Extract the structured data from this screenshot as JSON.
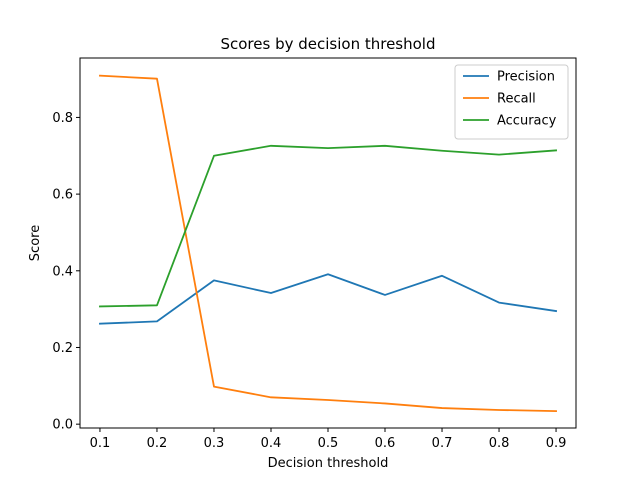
{
  "chart_data": {
    "type": "line",
    "title": "Scores by decision threshold",
    "xlabel": "Decision threshold",
    "ylabel": "Score",
    "x": [
      0.1,
      0.2,
      0.3,
      0.4,
      0.5,
      0.6,
      0.7,
      0.8,
      0.9
    ],
    "xlim": [
      0.065,
      0.935
    ],
    "ylim": [
      -0.01,
      0.955
    ],
    "xticks": [
      0.1,
      0.2,
      0.3,
      0.4,
      0.5,
      0.6,
      0.7,
      0.8,
      0.9
    ],
    "xtick_labels": [
      "0.1",
      "0.2",
      "0.3",
      "0.4",
      "0.5",
      "0.6",
      "0.7",
      "0.8",
      "0.9"
    ],
    "yticks": [
      0.0,
      0.2,
      0.4,
      0.6,
      0.8
    ],
    "ytick_labels": [
      "0.0",
      "0.2",
      "0.4",
      "0.6",
      "0.8"
    ],
    "grid": false,
    "legend_position": "top-right",
    "series": [
      {
        "name": "Precision",
        "color": "#1f77b4",
        "values": [
          0.262,
          0.268,
          0.375,
          0.342,
          0.391,
          0.337,
          0.387,
          0.317,
          0.295
        ]
      },
      {
        "name": "Recall",
        "color": "#ff7f0e",
        "values": [
          0.909,
          0.901,
          0.098,
          0.07,
          0.063,
          0.054,
          0.042,
          0.037,
          0.034
        ]
      },
      {
        "name": "Accuracy",
        "color": "#2ca02c",
        "values": [
          0.307,
          0.31,
          0.7,
          0.726,
          0.72,
          0.726,
          0.713,
          0.703,
          0.714
        ]
      }
    ]
  }
}
